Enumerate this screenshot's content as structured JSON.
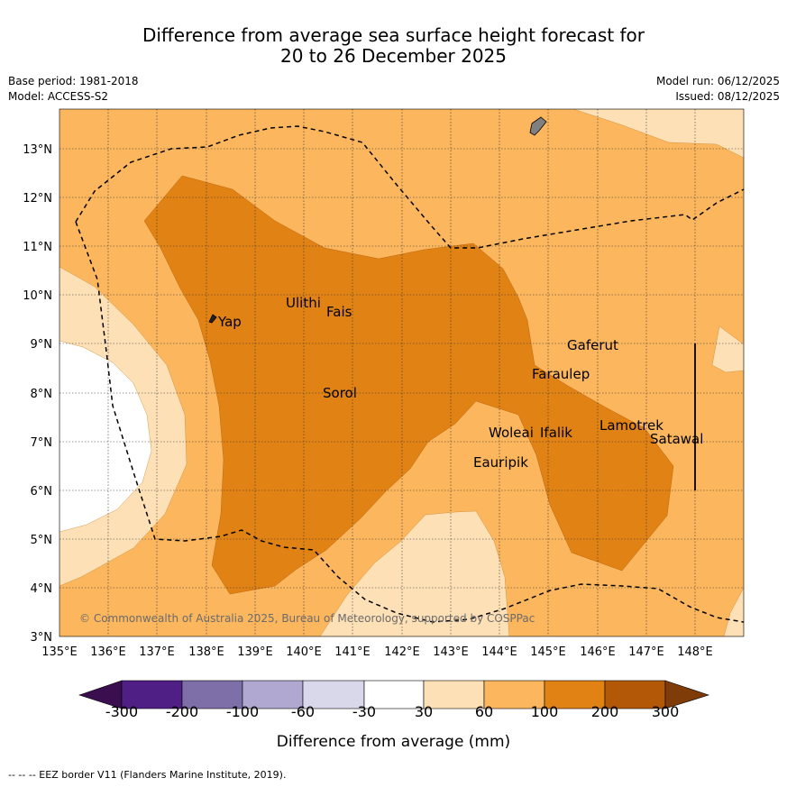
{
  "title_line1": "Difference from average sea surface height forecast for",
  "title_line2": "20 to 26 December 2025",
  "base_period": "Base period: 1981-2018",
  "model": "Model: ACCESS-S2",
  "model_run": "Model run: 06/12/2025",
  "issued": "Issued: 08/12/2025",
  "copyright": "© Commonwealth of Australia 2025, Bureau of Meteorology, supported by COSPPac",
  "footnote": "--  --  -- EEZ border V11 (Flanders Marine Institute, 2019).",
  "x_ticks": [
    "135°E",
    "136°E",
    "137°E",
    "138°E",
    "139°E",
    "140°E",
    "141°E",
    "142°E",
    "143°E",
    "144°E",
    "145°E",
    "146°E",
    "147°E",
    "148°E"
  ],
  "y_ticks": [
    "13°N",
    "12°N",
    "11°N",
    "10°N",
    "9°N",
    "8°N",
    "7°N",
    "6°N",
    "5°N",
    "4°N",
    "3°N"
  ],
  "places": {
    "yap": "Yap",
    "ulithi": "Ulithi",
    "fais": "Fais",
    "sorol": "Sorol",
    "gaferut": "Gaferut",
    "faraulep": "Faraulep",
    "woleai": "Woleai",
    "ifalik": "Ifalik",
    "eauripik": "Eauripik",
    "lamotrek": "Lamotrek",
    "satawal": "Satawal"
  },
  "colorbar": {
    "labels": [
      "-300",
      "-200",
      "-100",
      "-60",
      "-30",
      "30",
      "60",
      "100",
      "200",
      "300"
    ],
    "title": "Difference from average (mm)",
    "colors": [
      "#3b0f4f",
      "#4f1f85",
      "#7f6fa8",
      "#b0a8d0",
      "#d9d8ea",
      "#ffffff",
      "#fee0b6",
      "#fbb65e",
      "#e08214",
      "#b35806",
      "#7f3b08"
    ]
  },
  "palette": {
    "c30_60": "#fee0b6",
    "c60_100": "#fbb65e",
    "c100_200": "#e08214",
    "neutral": "#ffffff"
  }
}
